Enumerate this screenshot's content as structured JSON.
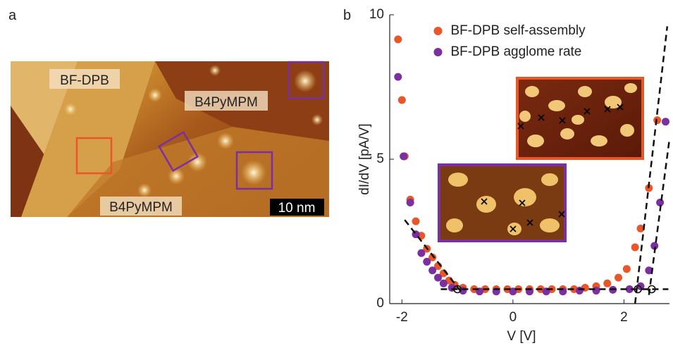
{
  "panel_a": {
    "label": "a",
    "annotations": [
      "BF-DPB",
      "B4PyMPM",
      "B4PyMPM"
    ],
    "scale_bar": "10 nm"
  },
  "chart_data": {
    "type": "scatter",
    "panel_label": "b",
    "x_label": "V [V]",
    "y_label": "dI/dV [pA/V]",
    "xlim": [
      -2.22,
      2.82
    ],
    "ylim": [
      0,
      10
    ],
    "xticks": [
      -2,
      0,
      2
    ],
    "yticks": [
      0,
      5,
      10
    ],
    "legend": "upper center",
    "series": [
      {
        "name": "BF-DPB self-assembly",
        "color": "#e8562a",
        "x": [
          -2.07,
          -2.0,
          -1.95,
          -1.85,
          -1.75,
          -1.65,
          -1.55,
          -1.45,
          -1.35,
          -1.25,
          -1.15,
          -1.05,
          -0.9,
          -0.7,
          -0.5,
          -0.3,
          -0.1,
          0.1,
          0.3,
          0.5,
          0.7,
          0.9,
          1.1,
          1.3,
          1.5,
          1.7,
          1.9,
          2.05,
          2.2,
          2.3,
          2.45,
          2.6
        ],
        "values": [
          9.15,
          7.05,
          5.1,
          3.6,
          2.85,
          2.35,
          1.9,
          1.6,
          1.3,
          1.05,
          0.8,
          0.65,
          0.55,
          0.5,
          0.5,
          0.5,
          0.5,
          0.5,
          0.5,
          0.5,
          0.5,
          0.5,
          0.5,
          0.55,
          0.6,
          0.7,
          0.9,
          1.2,
          1.95,
          2.6,
          4.0,
          6.35
        ]
      },
      {
        "name": "BF-DPB agglome rate",
        "color": "#7b2fa0",
        "x": [
          -2.07,
          -1.97,
          -1.85,
          -1.75,
          -1.65,
          -1.55,
          -1.45,
          -1.35,
          -1.25,
          -1.1,
          -0.9,
          -0.6,
          -0.3,
          0,
          0.3,
          0.6,
          0.9,
          1.2,
          1.5,
          1.8,
          2.1,
          2.3,
          2.45,
          2.55,
          2.65,
          2.75
        ],
        "values": [
          7.85,
          5.1,
          3.5,
          2.4,
          1.75,
          1.45,
          1.15,
          0.9,
          0.7,
          0.55,
          0.45,
          0.42,
          0.42,
          0.42,
          0.42,
          0.42,
          0.42,
          0.45,
          0.45,
          0.48,
          0.5,
          0.6,
          1.15,
          2.0,
          3.5,
          6.3
        ]
      }
    ],
    "fit_lines": [
      {
        "x": [
          -1.3,
          2.8
        ],
        "values": [
          0.5,
          0.5
        ]
      },
      {
        "x": [
          -1.95,
          -0.95
        ],
        "values": [
          2.9,
          0.45
        ]
      },
      {
        "x": [
          2.2,
          2.78
        ],
        "values": [
          0.0,
          9.6
        ]
      },
      {
        "x": [
          2.45,
          2.82
        ],
        "values": [
          0.3,
          5.7
        ]
      }
    ],
    "onsets": {
      "x": [
        -1.0,
        2.25,
        2.5
      ],
      "values": [
        0.5,
        0.5,
        0.5
      ]
    }
  }
}
